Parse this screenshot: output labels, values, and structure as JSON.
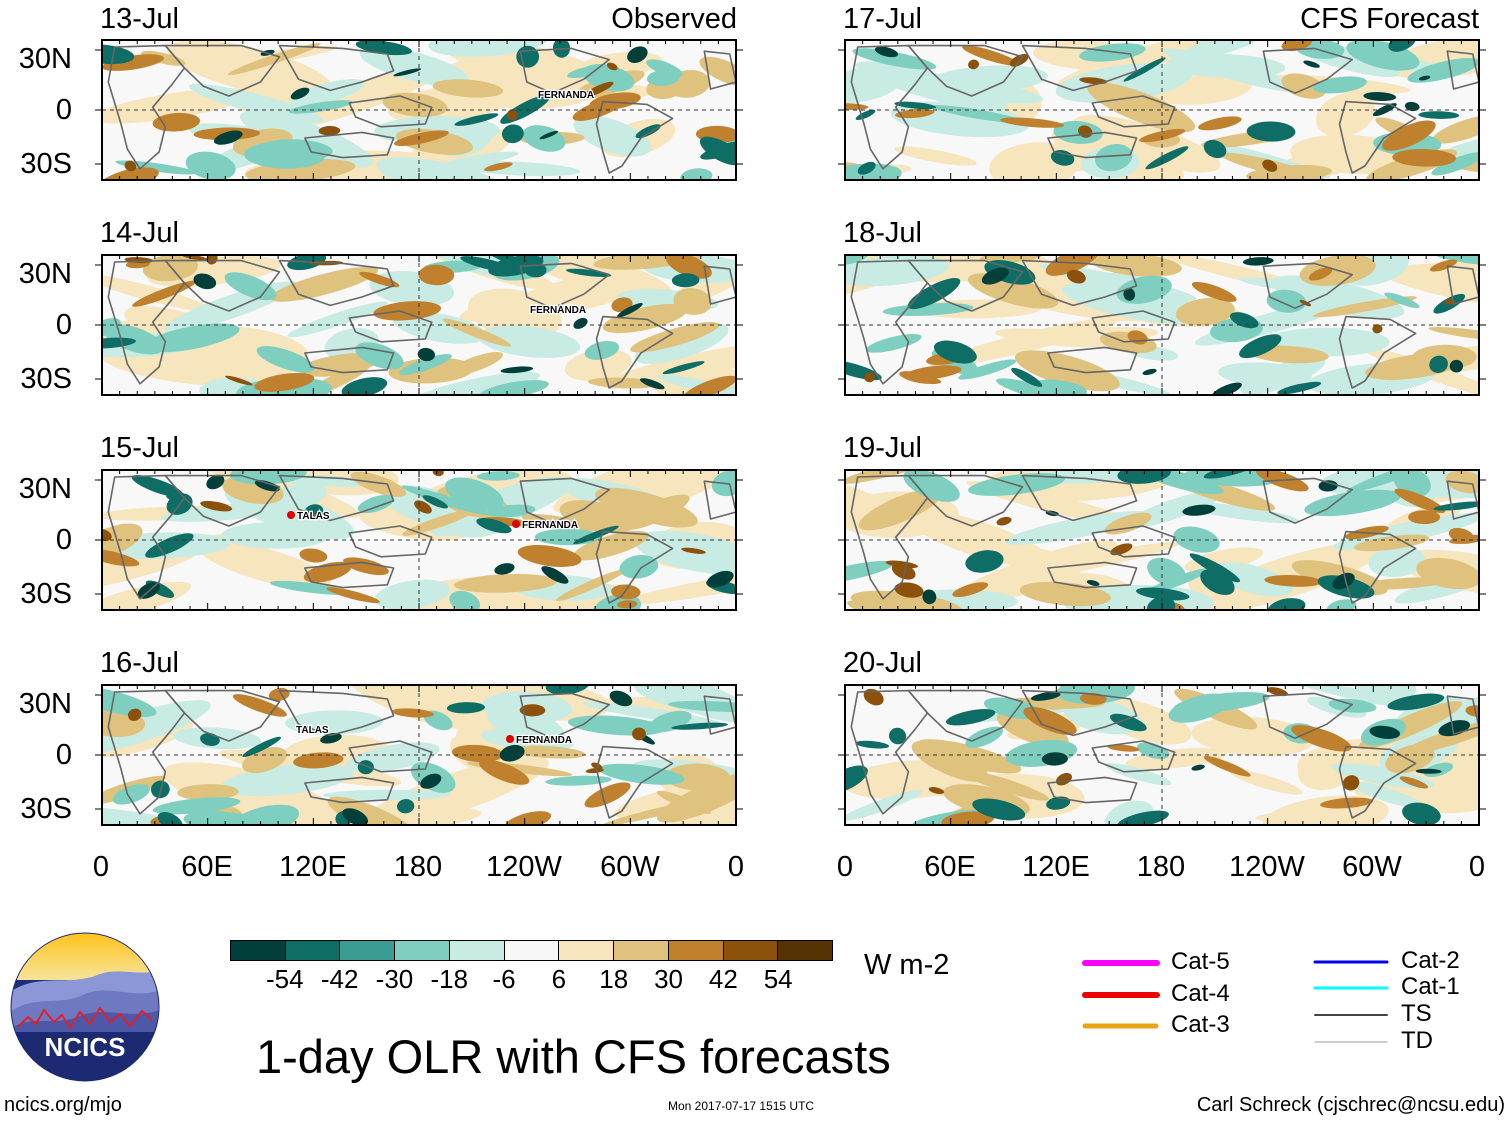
{
  "observed_label": "Observed",
  "forecast_label": "CFS Forecast",
  "observed_dates": [
    "13-Jul",
    "14-Jul",
    "15-Jul",
    "16-Jul"
  ],
  "forecast_dates": [
    "17-Jul",
    "18-Jul",
    "19-Jul",
    "20-Jul"
  ],
  "lat_ticks": [
    "30N",
    "0",
    "30S"
  ],
  "lon_ticks": [
    "0",
    "60E",
    "120E",
    "180",
    "120W",
    "60W",
    "0"
  ],
  "storms": {
    "fernanda": "FERNANDA",
    "talas": "TALAS"
  },
  "colorbar": {
    "colors": [
      "#01403a",
      "#0e6e66",
      "#3a9c93",
      "#7fcfc1",
      "#c8ebe3",
      "#f7f7f7",
      "#f6e5bd",
      "#dfc27d",
      "#bf812d",
      "#8c510a",
      "#553305"
    ],
    "tick_labels": [
      "-54",
      "-42",
      "-30",
      "-18",
      "-6",
      "6",
      "18",
      "30",
      "42",
      "54"
    ],
    "units": "W m-2"
  },
  "title": "1-day OLR with CFS forecasts",
  "logo_text": "NCICS",
  "footer": {
    "website": "ncics.org/mjo",
    "timestamp": "Mon 2017-07-17 1515 UTC",
    "author": "Carl Schreck (cjschrec@ncsu.edu)"
  },
  "legend": [
    {
      "label": "Cat-5",
      "color": "#ff00ff"
    },
    {
      "label": "Cat-4",
      "color": "#ee0000"
    },
    {
      "label": "Cat-3",
      "color": "#e8a317"
    },
    {
      "label": "Cat-2",
      "color": "#0000ee"
    },
    {
      "label": "Cat-1",
      "color": "#00ffff"
    },
    {
      "label": "TS",
      "color": "#444444"
    },
    {
      "label": "TD",
      "color": "#999999"
    }
  ]
}
